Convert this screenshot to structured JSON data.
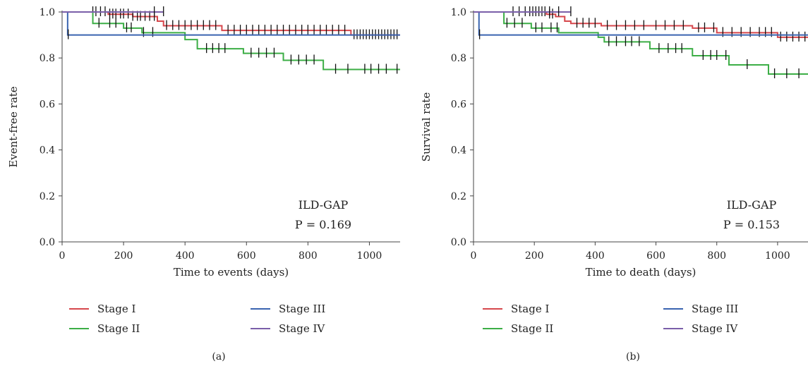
{
  "chart_data": [
    {
      "type": "line",
      "subtype": "kaplan-meier step",
      "panel_label": "(a)",
      "xlabel": "Time to events (days)",
      "ylabel": "Event-free rate",
      "xlim": [
        0,
        1100
      ],
      "ylim": [
        0.0,
        1.0
      ],
      "xticks": [
        0,
        200,
        400,
        600,
        800,
        1000
      ],
      "yticks": [
        0.0,
        0.2,
        0.4,
        0.6,
        0.8,
        1.0
      ],
      "ytick_labels": [
        "0.0",
        "0.2",
        "0.4",
        "0.6",
        "0.8",
        "1.0"
      ],
      "grid": false,
      "legend_position": "bottom",
      "annotation": {
        "title": "ILD-GAP",
        "pvalue": "P = 0.169"
      },
      "series": [
        {
          "name": "Stage I",
          "color": "#d6474c",
          "steps": [
            [
              0,
              1.0
            ],
            [
              150,
              0.99
            ],
            [
              230,
              0.98
            ],
            [
              310,
              0.96
            ],
            [
              330,
              0.94
            ],
            [
              520,
              0.92
            ],
            [
              940,
              0.9
            ],
            [
              1100,
              0.9
            ]
          ],
          "censor": [
            100,
            110,
            125,
            140,
            155,
            165,
            175,
            190,
            200,
            215,
            230,
            245,
            255,
            270,
            285,
            300,
            340,
            360,
            380,
            400,
            420,
            440,
            460,
            480,
            500,
            540,
            560,
            580,
            600,
            620,
            640,
            660,
            680,
            700,
            720,
            740,
            760,
            780,
            800,
            820,
            840,
            860,
            880,
            900,
            920,
            950,
            960,
            970,
            980,
            990,
            1000,
            1010,
            1020,
            1030,
            1040,
            1050,
            1060,
            1070,
            1080,
            1090
          ]
        },
        {
          "name": "Stage II",
          "color": "#3cae46",
          "steps": [
            [
              0,
              1.0
            ],
            [
              100,
              0.95
            ],
            [
              200,
              0.93
            ],
            [
              260,
              0.91
            ],
            [
              400,
              0.88
            ],
            [
              440,
              0.84
            ],
            [
              590,
              0.82
            ],
            [
              720,
              0.79
            ],
            [
              850,
              0.75
            ],
            [
              1100,
              0.75
            ]
          ],
          "censor": [
            120,
            155,
            175,
            210,
            225,
            265,
            295,
            470,
            490,
            510,
            530,
            615,
            640,
            665,
            690,
            745,
            770,
            795,
            820,
            890,
            930,
            985,
            1005,
            1030,
            1055,
            1090
          ]
        },
        {
          "name": "Stage III",
          "color": "#3a64b0",
          "steps": [
            [
              0,
              1.0
            ],
            [
              18,
              0.9
            ],
            [
              1100,
              0.9
            ]
          ],
          "censor": [
            20
          ]
        },
        {
          "name": "Stage IV",
          "color": "#7a5fa9",
          "steps": [
            [
              0,
              1.0
            ],
            [
              330,
              1.0
            ]
          ],
          "censor": [
            300,
            330
          ]
        }
      ]
    },
    {
      "type": "line",
      "subtype": "kaplan-meier step",
      "panel_label": "(b)",
      "xlabel": "Time to death (days)",
      "ylabel": "Survival rate",
      "xlim": [
        0,
        1100
      ],
      "ylim": [
        0.0,
        1.0
      ],
      "xticks": [
        0,
        200,
        400,
        600,
        800,
        1000
      ],
      "yticks": [
        0.0,
        0.2,
        0.4,
        0.6,
        0.8,
        1.0
      ],
      "ytick_labels": [
        "0.0",
        "0.2",
        "0.4",
        "0.6",
        "0.8",
        "1.0"
      ],
      "grid": false,
      "legend_position": "bottom",
      "annotation": {
        "title": "ILD-GAP",
        "pvalue": "P = 0.153"
      },
      "series": [
        {
          "name": "Stage I",
          "color": "#d6474c",
          "steps": [
            [
              0,
              1.0
            ],
            [
              240,
              0.99
            ],
            [
              270,
              0.98
            ],
            [
              300,
              0.96
            ],
            [
              320,
              0.95
            ],
            [
              420,
              0.94
            ],
            [
              720,
              0.93
            ],
            [
              800,
              0.91
            ],
            [
              1000,
              0.89
            ],
            [
              1100,
              0.89
            ]
          ],
          "censor": [
            130,
            150,
            170,
            185,
            195,
            205,
            215,
            225,
            235,
            250,
            260,
            340,
            360,
            380,
            400,
            440,
            470,
            500,
            530,
            560,
            600,
            630,
            660,
            690,
            740,
            760,
            790,
            820,
            850,
            880,
            910,
            940,
            960,
            980,
            1010,
            1030,
            1050,
            1070,
            1090
          ]
        },
        {
          "name": "Stage II",
          "color": "#3cae46",
          "steps": [
            [
              0,
              1.0
            ],
            [
              100,
              0.95
            ],
            [
              190,
              0.93
            ],
            [
              280,
              0.91
            ],
            [
              410,
              0.89
            ],
            [
              430,
              0.87
            ],
            [
              580,
              0.84
            ],
            [
              720,
              0.81
            ],
            [
              840,
              0.77
            ],
            [
              970,
              0.73
            ],
            [
              1100,
              0.73
            ]
          ],
          "censor": [
            110,
            135,
            160,
            205,
            225,
            255,
            275,
            445,
            470,
            500,
            520,
            545,
            610,
            640,
            665,
            685,
            755,
            780,
            800,
            830,
            900,
            990,
            1030,
            1070
          ]
        },
        {
          "name": "Stage III",
          "color": "#3a64b0",
          "steps": [
            [
              0,
              1.0
            ],
            [
              18,
              0.9
            ],
            [
              1100,
              0.9
            ]
          ],
          "censor": [
            20
          ]
        },
        {
          "name": "Stage IV",
          "color": "#7a5fa9",
          "steps": [
            [
              0,
              1.0
            ],
            [
              320,
              1.0
            ]
          ],
          "censor": [
            250,
            280,
            320
          ]
        }
      ]
    }
  ]
}
